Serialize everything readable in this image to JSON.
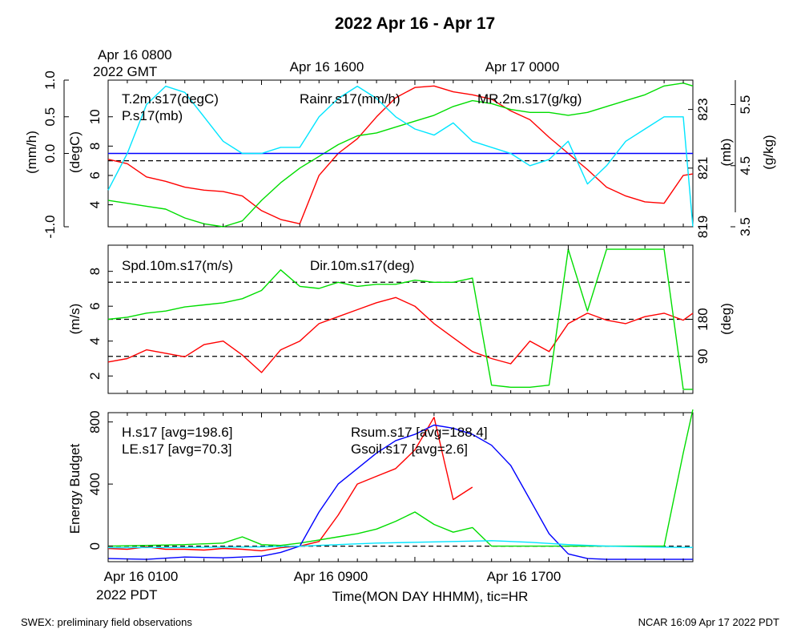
{
  "title": "2022 Apr 16 - Apr 17",
  "top_time_labels": {
    "first_line1": "Apr 16 0800",
    "first_line2": "2022 GMT",
    "second": "Apr 16 1600",
    "third": "Apr 17 0000"
  },
  "bottom_time_labels": {
    "first_line1": "Apr 16 0100",
    "first_line2": "2022 PDT",
    "second": "Apr 16 0900",
    "third": "Apr 16 1700"
  },
  "xlabel": "Time(MON DAY HHMM), tic=HR",
  "footer_left": "SWEX: preliminary field observations",
  "footer_right": "NCAR 16:09 Apr 17 2022 PDT",
  "colors": {
    "red": "#ff0000",
    "green": "#00dd00",
    "blue": "#0000ff",
    "cyan": "#00e5ff",
    "black": "#000000"
  },
  "chart_data": [
    {
      "type": "line",
      "panel": "meteorology",
      "x_unit": "hours since Apr 16 0100 PDT",
      "xlim": [
        0,
        30.5
      ],
      "axes": {
        "rain": {
          "label": "(mm/h)",
          "ylim": [
            -1.0,
            1.0
          ],
          "ticks": [
            "-1.0",
            "0.0",
            "0.5",
            "1.0"
          ]
        },
        "temp": {
          "label": "(degC)",
          "ylim": [
            2.5,
            12.5
          ],
          "ticks": [
            "4",
            "6",
            "8",
            "10"
          ]
        },
        "pres": {
          "label": "(mb)",
          "ylim": [
            819,
            824
          ],
          "ticks": [
            "819",
            "821",
            "823"
          ]
        },
        "mr": {
          "label": "(g/kg)",
          "ylim": [
            3.5,
            5.9
          ],
          "ticks": [
            "3.5",
            "4.5",
            "5.5"
          ]
        }
      },
      "series": [
        {
          "name": "T.2m.s17(degC)",
          "axis": "temp",
          "color": "red",
          "x": [
            0,
            1,
            2,
            3,
            4,
            5,
            6,
            7,
            8,
            9,
            10,
            11,
            12,
            13,
            14,
            15,
            16,
            17,
            18,
            19,
            20,
            21,
            22,
            23,
            24,
            25,
            26,
            27,
            28,
            29,
            30,
            30.5
          ],
          "y": [
            7.1,
            6.8,
            5.9,
            5.6,
            5.2,
            5.0,
            4.9,
            4.6,
            3.6,
            3.0,
            2.7,
            6.0,
            7.5,
            8.5,
            10.0,
            11.3,
            12.0,
            12.1,
            11.7,
            11.5,
            11.2,
            10.4,
            9.8,
            8.6,
            7.5,
            6.4,
            5.2,
            4.6,
            4.2,
            4.1,
            6.0,
            6.1
          ]
        },
        {
          "name": "P.s17(mb)",
          "axis": "pres",
          "color": "green",
          "x": [
            0,
            1,
            2,
            3,
            4,
            5,
            6,
            7,
            8,
            9,
            10,
            11,
            12,
            13,
            14,
            15,
            16,
            17,
            18,
            19,
            20,
            21,
            22,
            23,
            24,
            25,
            26,
            27,
            28,
            29,
            30,
            30.5
          ],
          "y": [
            819.9,
            819.8,
            819.7,
            819.6,
            819.3,
            819.1,
            819.0,
            819.2,
            819.9,
            820.5,
            821.0,
            821.4,
            821.8,
            822.1,
            822.2,
            822.4,
            822.6,
            822.8,
            823.1,
            823.3,
            823.2,
            823.0,
            822.9,
            822.9,
            822.8,
            822.9,
            823.1,
            823.3,
            823.5,
            823.8,
            823.9,
            823.8
          ]
        },
        {
          "name": "Rainr.s17(mm/h)",
          "axis": "rain",
          "color": "blue",
          "x": [
            0,
            30.5
          ],
          "y": [
            0.0,
            0.0
          ]
        },
        {
          "name": "MR.2m.s17(g/kg)",
          "axis": "mr",
          "color": "cyan",
          "x": [
            0,
            1,
            2,
            3,
            4,
            5,
            6,
            7,
            8,
            9,
            10,
            11,
            12,
            13,
            14,
            15,
            16,
            17,
            18,
            19,
            20,
            21,
            22,
            23,
            24,
            25,
            26,
            27,
            28,
            29,
            30,
            30.5
          ],
          "y": [
            4.1,
            4.7,
            5.5,
            5.8,
            5.7,
            5.3,
            4.9,
            4.7,
            4.7,
            4.8,
            4.8,
            5.3,
            5.6,
            5.8,
            5.6,
            5.3,
            5.1,
            5.0,
            5.2,
            4.9,
            4.8,
            4.7,
            4.5,
            4.6,
            4.9,
            4.2,
            4.5,
            4.9,
            5.1,
            5.3,
            5.3,
            3.5
          ]
        }
      ],
      "reference_lines": [
        {
          "axis": "temp",
          "y": 7.0
        }
      ]
    },
    {
      "type": "line",
      "panel": "wind",
      "x_unit": "hours since Apr 16 0100 PDT",
      "xlim": [
        0,
        30.5
      ],
      "axes": {
        "spd": {
          "label": "(m/s)",
          "ylim": [
            1,
            9.5
          ],
          "ticks": [
            "2",
            "4",
            "6",
            "8"
          ]
        },
        "dir": {
          "label": "(deg)",
          "ylim": [
            0,
            360
          ],
          "ticks": [
            "90",
            "180"
          ]
        }
      },
      "series": [
        {
          "name": "Spd.10m.s17(m/s)",
          "axis": "spd",
          "color": "red",
          "x": [
            0,
            1,
            2,
            3,
            4,
            5,
            6,
            7,
            8,
            9,
            10,
            11,
            12,
            13,
            14,
            15,
            16,
            17,
            18,
            19,
            20,
            21,
            22,
            23,
            24,
            25,
            26,
            27,
            28,
            29,
            30,
            30.5
          ],
          "y": [
            2.8,
            3.0,
            3.5,
            3.3,
            3.1,
            3.8,
            4.0,
            3.2,
            2.2,
            3.5,
            4.0,
            5.0,
            5.4,
            5.8,
            6.2,
            6.5,
            6.0,
            5.0,
            4.2,
            3.4,
            3.0,
            2.7,
            4.0,
            3.4,
            5.0,
            5.6,
            5.2,
            5.0,
            5.4,
            5.6,
            5.2,
            5.6
          ]
        },
        {
          "name": "Dir.10m.s17(deg)",
          "axis": "dir",
          "color": "green",
          "x": [
            0,
            1,
            2,
            3,
            4,
            5,
            6,
            7,
            8,
            9,
            10,
            11,
            12,
            13,
            14,
            15,
            16,
            17,
            18,
            19,
            20,
            21,
            22,
            23,
            24,
            25,
            26,
            27,
            28,
            29,
            30,
            30.5
          ],
          "y": [
            180,
            185,
            195,
            200,
            210,
            215,
            220,
            230,
            250,
            300,
            260,
            255,
            270,
            260,
            265,
            265,
            275,
            270,
            270,
            280,
            20,
            15,
            15,
            20,
            350,
            200,
            350,
            350,
            350,
            350,
            10,
            10
          ]
        }
      ],
      "reference_lines": [
        {
          "axis": "dir",
          "y": 90
        },
        {
          "axis": "dir",
          "y": 180
        },
        {
          "axis": "dir",
          "y": 270
        }
      ]
    },
    {
      "type": "line",
      "panel": "energy",
      "x_unit": "hours since Apr 16 0100 PDT",
      "xlim": [
        0,
        30.5
      ],
      "ylabel": "Energy Budget",
      "ylim": [
        -100,
        860
      ],
      "yticks": [
        "0",
        "400",
        "800"
      ],
      "series": [
        {
          "name": "H.s17 [avg=198.6]",
          "color": "red",
          "x": [
            0,
            1,
            2,
            3,
            4,
            5,
            6,
            7,
            8,
            9,
            10,
            11,
            12,
            13,
            14,
            15,
            16,
            17,
            18,
            19
          ],
          "y": [
            -15,
            -20,
            -5,
            -20,
            -20,
            -25,
            -15,
            -20,
            -30,
            -10,
            0,
            30,
            200,
            400,
            450,
            500,
            620,
            830,
            300,
            380
          ]
        },
        {
          "name": "LE.s17 [avg=70.3]",
          "color": "green",
          "x": [
            0,
            2,
            4,
            6,
            7,
            8,
            9,
            10,
            11,
            12,
            13,
            14,
            15,
            16,
            17,
            18,
            19,
            20,
            22,
            25,
            27,
            28,
            29,
            30,
            30.5
          ],
          "y": [
            0,
            5,
            10,
            20,
            60,
            10,
            5,
            20,
            40,
            60,
            80,
            110,
            160,
            220,
            140,
            90,
            120,
            0,
            0,
            0,
            0,
            0,
            0,
            600,
            880
          ]
        },
        {
          "name": "Rsum.s17 [avg=188.4]",
          "color": "blue",
          "x": [
            0,
            2,
            4,
            6,
            8,
            9,
            10,
            11,
            12,
            13,
            14,
            15,
            16,
            17,
            18,
            19,
            20,
            21,
            22,
            23,
            24,
            25,
            26,
            27,
            28,
            29,
            30,
            30.5
          ],
          "y": [
            -80,
            -85,
            -70,
            -75,
            -65,
            -40,
            0,
            220,
            400,
            500,
            600,
            680,
            720,
            780,
            760,
            720,
            650,
            520,
            300,
            80,
            -50,
            -80,
            -85,
            -85,
            -85,
            -85,
            -85,
            -85
          ]
        },
        {
          "name": "Gsoil.s17 [avg=2.6]",
          "color": "cyan",
          "x": [
            0,
            4,
            8,
            10,
            12,
            14,
            16,
            18,
            20,
            22,
            24,
            26,
            28,
            30,
            30.5
          ],
          "y": [
            -10,
            -8,
            -5,
            0,
            10,
            20,
            25,
            30,
            35,
            25,
            10,
            0,
            -5,
            -8,
            -8
          ]
        }
      ],
      "reference_lines": [
        {
          "y": 0
        }
      ]
    }
  ]
}
